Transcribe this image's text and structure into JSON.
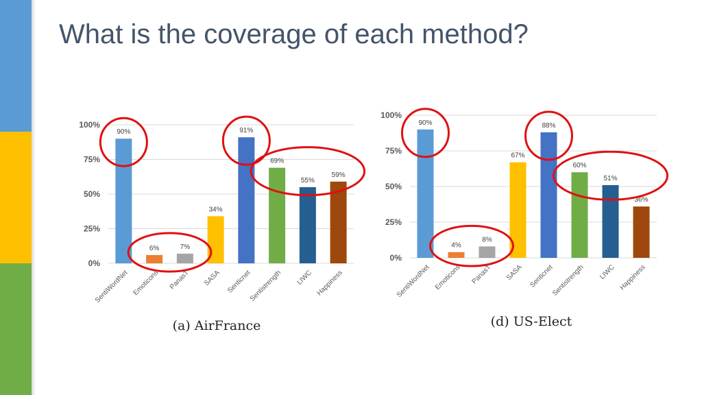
{
  "slide": {
    "title": "What is the coverage of each method?",
    "accent_colors": [
      "#5b9bd5",
      "#ffc000",
      "#70ad47"
    ],
    "highlight_color": "#e01010"
  },
  "chart_data": [
    {
      "type": "bar",
      "caption": "(a) AirFrance",
      "categories": [
        "SentiWordNet",
        "Emoticons",
        "PanasT",
        "SASA",
        "Senticnet",
        "Sentistrength",
        "LIWC",
        "Happiness"
      ],
      "values": [
        90,
        6,
        7,
        34,
        91,
        69,
        55,
        59
      ],
      "labels": [
        "90%",
        "6%",
        "7%",
        "34%",
        "91%",
        "69%",
        "55%",
        "59%"
      ],
      "colors": [
        "#5b9bd5",
        "#ed7d31",
        "#a5a5a5",
        "#ffc000",
        "#4472c4",
        "#70ad47",
        "#255e91",
        "#9e480e"
      ],
      "yticks": [
        "0%",
        "25%",
        "50%",
        "75%",
        "100%"
      ],
      "ylim": [
        0,
        100
      ],
      "grid": true,
      "highlighted_groups": [
        [
          0
        ],
        [
          1,
          2
        ],
        [
          4
        ],
        [
          5,
          6,
          7
        ]
      ]
    },
    {
      "type": "bar",
      "caption": "(d) US-Elect",
      "categories": [
        "SentiWordNet",
        "Emoticons",
        "PanasT",
        "SASA",
        "Senticnet",
        "Sentistrength",
        "LIWC",
        "Happiness"
      ],
      "values": [
        90,
        4,
        8,
        67,
        88,
        60,
        51,
        36
      ],
      "labels": [
        "90%",
        "4%",
        "8%",
        "67%",
        "88%",
        "60%",
        "51%",
        "36%"
      ],
      "colors": [
        "#5b9bd5",
        "#ed7d31",
        "#a5a5a5",
        "#ffc000",
        "#4472c4",
        "#70ad47",
        "#255e91",
        "#9e480e"
      ],
      "yticks": [
        "0%",
        "25%",
        "50%",
        "75%",
        "100%"
      ],
      "ylim": [
        0,
        100
      ],
      "grid": true,
      "highlighted_groups": [
        [
          0
        ],
        [
          1,
          2
        ],
        [
          4
        ],
        [
          5,
          6,
          7
        ]
      ]
    }
  ]
}
